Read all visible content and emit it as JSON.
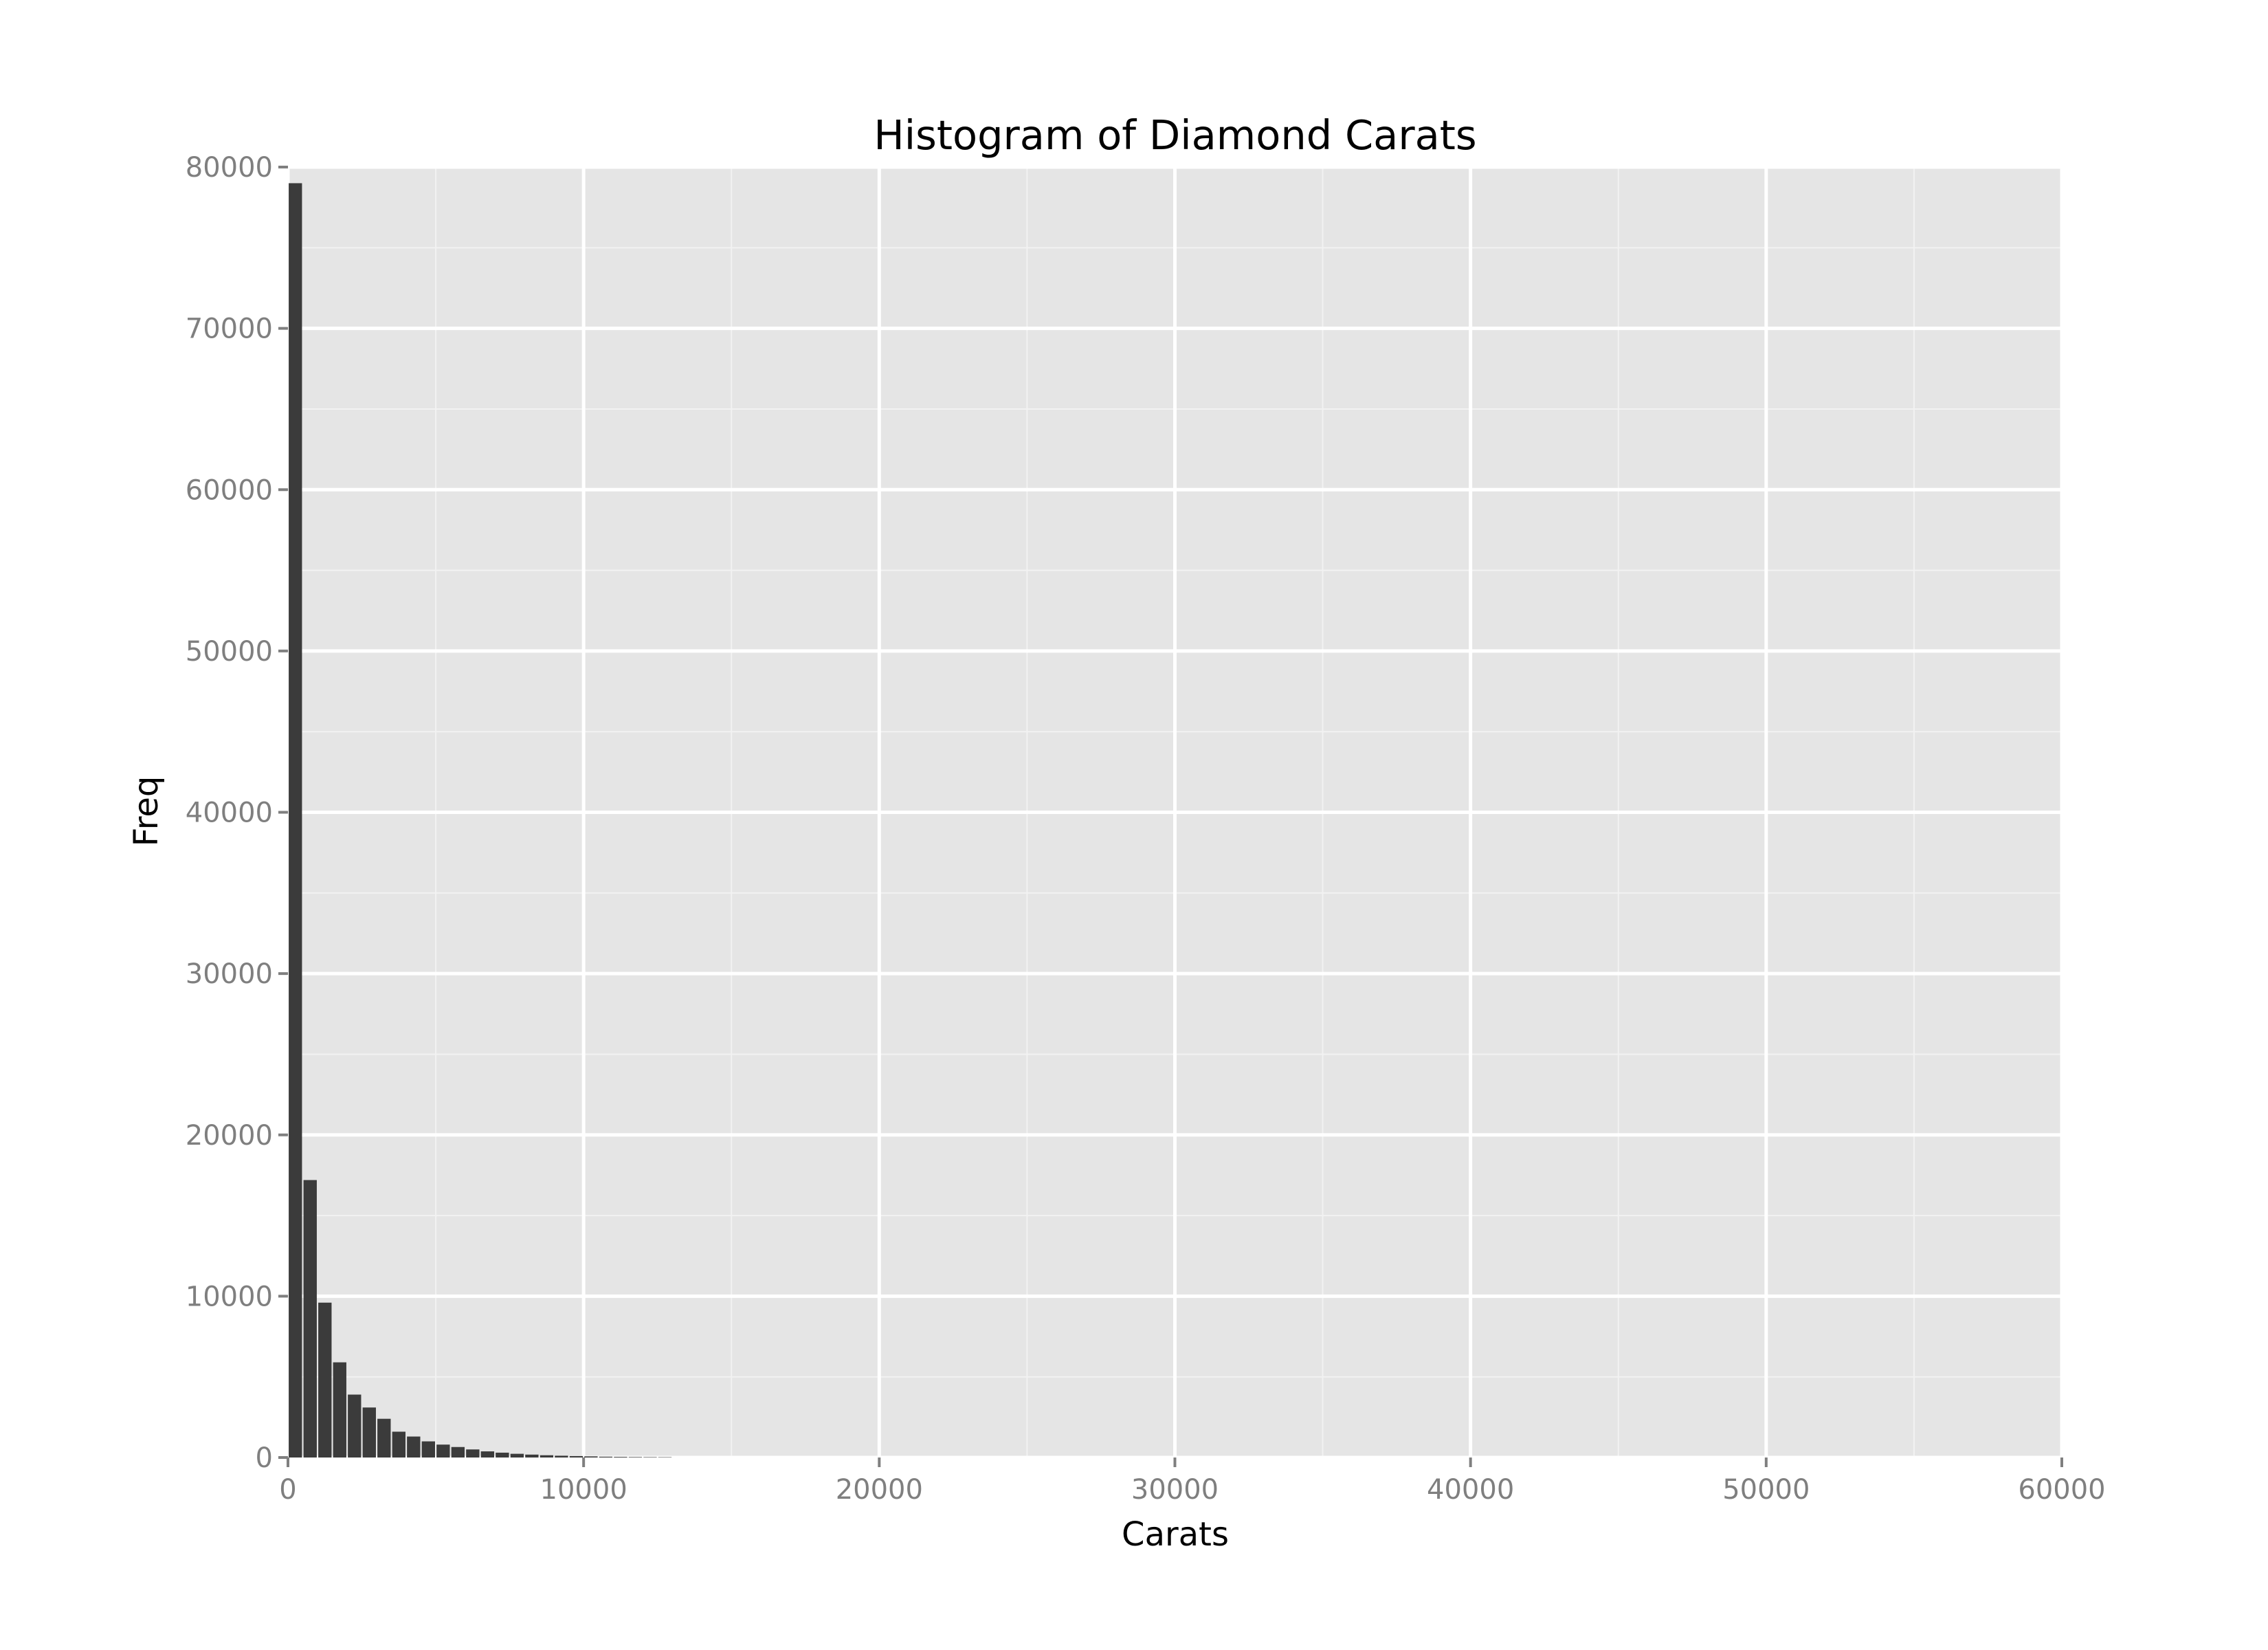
{
  "colors": {
    "panel": "#e5e5e5",
    "grid_major": "#ffffff",
    "grid_minor": "#f2f2f2",
    "bar": "#3b3b3b",
    "tick": "#7f7f7f"
  },
  "chart_data": {
    "type": "bar",
    "title": "Histogram of Diamond Carats",
    "xlabel": "Carats",
    "ylabel": "Freq",
    "xlim": [
      0,
      60000
    ],
    "ylim": [
      0,
      80000
    ],
    "xticks": [
      0,
      10000,
      20000,
      30000,
      40000,
      50000,
      60000
    ],
    "yticks": [
      0,
      10000,
      20000,
      30000,
      40000,
      50000,
      60000,
      70000,
      80000
    ],
    "grid": true,
    "bin_width": 500,
    "bins": [
      {
        "x0": 0,
        "x1": 500,
        "count": 79000
      },
      {
        "x0": 500,
        "x1": 1000,
        "count": 17200
      },
      {
        "x0": 1000,
        "x1": 1500,
        "count": 9600
      },
      {
        "x0": 1500,
        "x1": 2000,
        "count": 5900
      },
      {
        "x0": 2000,
        "x1": 2500,
        "count": 3900
      },
      {
        "x0": 2500,
        "x1": 3000,
        "count": 3100
      },
      {
        "x0": 3000,
        "x1": 3500,
        "count": 2400
      },
      {
        "x0": 3500,
        "x1": 4000,
        "count": 1600
      },
      {
        "x0": 4000,
        "x1": 4500,
        "count": 1300
      },
      {
        "x0": 4500,
        "x1": 5000,
        "count": 1000
      },
      {
        "x0": 5000,
        "x1": 5500,
        "count": 800
      },
      {
        "x0": 5500,
        "x1": 6000,
        "count": 650
      },
      {
        "x0": 6000,
        "x1": 6500,
        "count": 500
      },
      {
        "x0": 6500,
        "x1": 7000,
        "count": 380
      },
      {
        "x0": 7000,
        "x1": 7500,
        "count": 300
      },
      {
        "x0": 7500,
        "x1": 8000,
        "count": 230
      },
      {
        "x0": 8000,
        "x1": 8500,
        "count": 180
      },
      {
        "x0": 8500,
        "x1": 9000,
        "count": 140
      },
      {
        "x0": 9000,
        "x1": 9500,
        "count": 110
      },
      {
        "x0": 9500,
        "x1": 10000,
        "count": 90
      },
      {
        "x0": 10000,
        "x1": 10500,
        "count": 70
      },
      {
        "x0": 10500,
        "x1": 11000,
        "count": 50
      },
      {
        "x0": 11000,
        "x1": 11500,
        "count": 40
      },
      {
        "x0": 11500,
        "x1": 12000,
        "count": 30
      },
      {
        "x0": 12000,
        "x1": 12500,
        "count": 25
      },
      {
        "x0": 12500,
        "x1": 13000,
        "count": 20
      }
    ]
  }
}
